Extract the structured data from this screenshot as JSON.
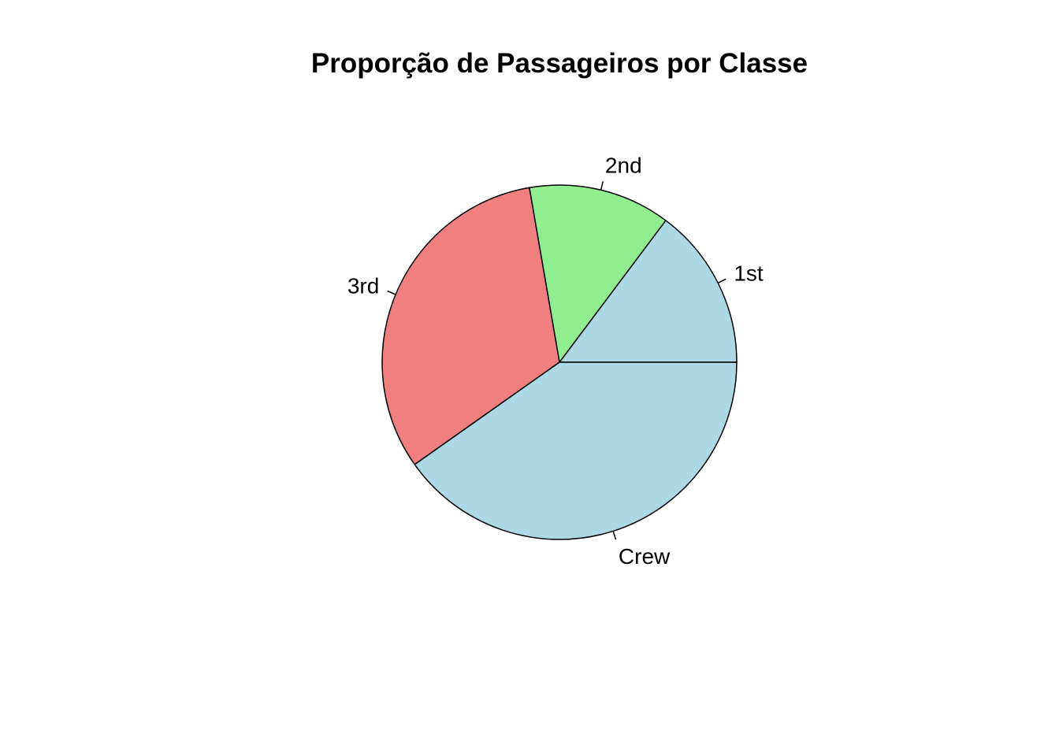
{
  "chart_data": {
    "type": "pie",
    "title": "Proporção de Passageiros por Classe",
    "slices": [
      {
        "label": "1st",
        "value": 325,
        "color": "#ADD8E6"
      },
      {
        "label": "2nd",
        "value": 285,
        "color": "#90EE90"
      },
      {
        "label": "3rd",
        "value": 706,
        "color": "#F08080"
      },
      {
        "label": "Crew",
        "value": 885,
        "color": "#ADD8E6"
      }
    ],
    "start_angle_deg": 0,
    "direction": "counterclockwise",
    "labels_outside": true,
    "legend": "none"
  }
}
